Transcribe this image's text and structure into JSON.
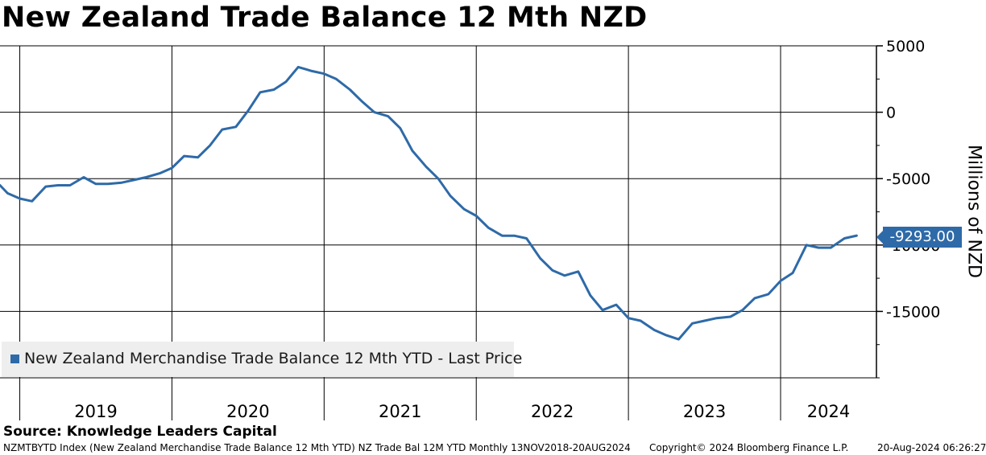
{
  "title": "New Zealand Trade Balance 12 Mth NZD",
  "source": "Source: Knowledge Leaders Capital",
  "footer": {
    "index": "NZMTBYTD Index (New Zealand Merchandise Trade Balance 12 Mth YTD) NZ Trade Bal 12M YTD  Monthly 13NOV2018-20AUG2024",
    "copyright": "Copyright© 2024 Bloomberg Finance L.P.",
    "date": "20-Aug-2024 06:26:27"
  },
  "colors": {
    "line": "#2e6aa8",
    "grid": "#000000",
    "legend_bg": "#eeeeee"
  },
  "chart_data": {
    "type": "line",
    "title": "New Zealand Trade Balance 12 Mth NZD",
    "ylabel": "Millions of NZD",
    "xlabel": "",
    "x_range": [
      2018.87,
      2024.63
    ],
    "ylim": [
      -20000,
      5000
    ],
    "y_ticks": [
      5000,
      0,
      -5000,
      -10000,
      -15000
    ],
    "y_tick_labels": [
      "5000",
      "0",
      "-5000",
      "-10000",
      "-15000"
    ],
    "year_boundaries": [
      2019,
      2020,
      2021,
      2022,
      2023,
      2024
    ],
    "x_labels": [
      "2019",
      "2020",
      "2021",
      "2022",
      "2023",
      "2024"
    ],
    "grid": true,
    "legend": {
      "label": "New Zealand Merchandise Trade Balance 12 Mth YTD - Last Price",
      "position": "bottom-left"
    },
    "last_value_label": "-9293.00",
    "last_value": -9293,
    "series": [
      {
        "name": "New Zealand Merchandise Trade Balance 12 Mth YTD - Last Price",
        "x": [
          2018.87,
          2018.92,
          2019.0,
          2019.08,
          2019.17,
          2019.25,
          2019.33,
          2019.42,
          2019.5,
          2019.58,
          2019.67,
          2019.75,
          2019.83,
          2019.92,
          2020.0,
          2020.08,
          2020.17,
          2020.25,
          2020.33,
          2020.42,
          2020.5,
          2020.58,
          2020.67,
          2020.75,
          2020.83,
          2020.92,
          2021.0,
          2021.08,
          2021.17,
          2021.25,
          2021.33,
          2021.42,
          2021.5,
          2021.58,
          2021.67,
          2021.75,
          2021.83,
          2021.92,
          2022.0,
          2022.08,
          2022.17,
          2022.25,
          2022.33,
          2022.42,
          2022.5,
          2022.58,
          2022.67,
          2022.75,
          2022.83,
          2022.92,
          2023.0,
          2023.08,
          2023.17,
          2023.25,
          2023.33,
          2023.42,
          2023.5,
          2023.58,
          2023.67,
          2023.75,
          2023.83,
          2023.92,
          2024.0,
          2024.08,
          2024.17,
          2024.25,
          2024.33,
          2024.42,
          2024.5
        ],
        "values": [
          -5500,
          -6100,
          -6500,
          -6700,
          -5600,
          -5500,
          -5500,
          -4900,
          -5400,
          -5400,
          -5300,
          -5100,
          -4900,
          -4600,
          -4200,
          -3300,
          -3400,
          -2500,
          -1300,
          -1100,
          100,
          1500,
          1700,
          2300,
          3400,
          3100,
          2900,
          2500,
          1700,
          800,
          0,
          -300,
          -1200,
          -2900,
          -4100,
          -5000,
          -6300,
          -7300,
          -7800,
          -8700,
          -9300,
          -9300,
          -9500,
          -11000,
          -11900,
          -12300,
          -12000,
          -13800,
          -14900,
          -14500,
          -15500,
          -15700,
          -16400,
          -16800,
          -17100,
          -15900,
          -15700,
          -15500,
          -15400,
          -14900,
          -14000,
          -13700,
          -12700,
          -12100,
          -10000,
          -10200,
          -10200,
          -9500,
          -9293
        ]
      }
    ]
  }
}
